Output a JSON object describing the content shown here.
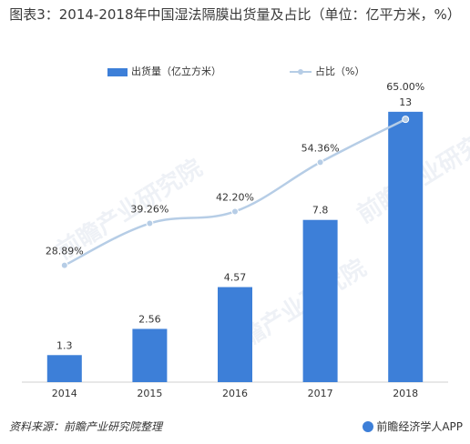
{
  "title": "图表3：2014-2018年中国湿法隔膜出货量及占比（单位：亿平方米，%）",
  "legend": {
    "bar_label": "出货量（亿立方米）",
    "line_label": "占比（%）"
  },
  "footer": {
    "source": "资料来源：前瞻产业研究院整理",
    "brand": "前瞻经济学人APP"
  },
  "watermark": "前瞻产业研究院",
  "colors": {
    "bar": "#3d7fd8",
    "line": "#b6cde6",
    "axis": "#d0d0d0"
  },
  "chart_data": {
    "type": "bar",
    "categories": [
      "2014",
      "2015",
      "2016",
      "2017",
      "2018"
    ],
    "series": [
      {
        "name": "出货量（亿立方米）",
        "type": "bar",
        "values": [
          1.3,
          2.56,
          4.57,
          7.8,
          13
        ],
        "labels": [
          "1.3",
          "2.56",
          "4.57",
          "7.8",
          "13"
        ]
      },
      {
        "name": "占比（%）",
        "type": "line",
        "values": [
          28.89,
          39.26,
          42.2,
          54.36,
          65.0
        ],
        "labels": [
          "28.89%",
          "39.26%",
          "42.20%",
          "54.36%",
          "65.00%"
        ]
      }
    ],
    "bar_axis_range": [
      0,
      14
    ],
    "line_axis_range": [
      0,
      72
    ],
    "grid": false,
    "legend_position": "top"
  }
}
